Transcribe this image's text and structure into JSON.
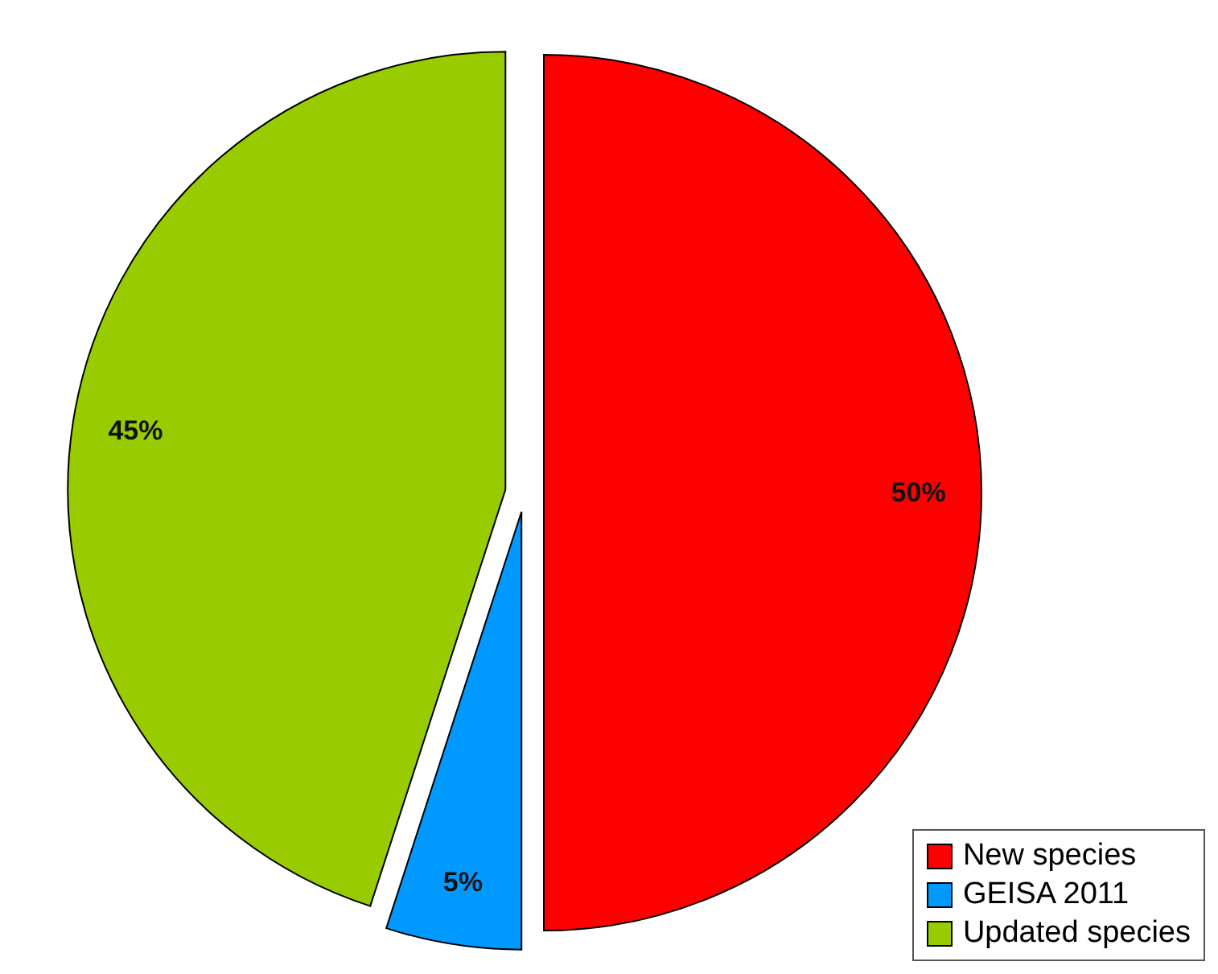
{
  "chart_data": {
    "type": "pie",
    "categories": [
      "New species",
      "GEISA 2011",
      "Updated species"
    ],
    "values": [
      50,
      5,
      45
    ],
    "colors": [
      "#ff0000",
      "#0099ff",
      "#99cc00"
    ],
    "value_labels": [
      "50%",
      "5%",
      "45%"
    ],
    "legend": "bottom right"
  }
}
